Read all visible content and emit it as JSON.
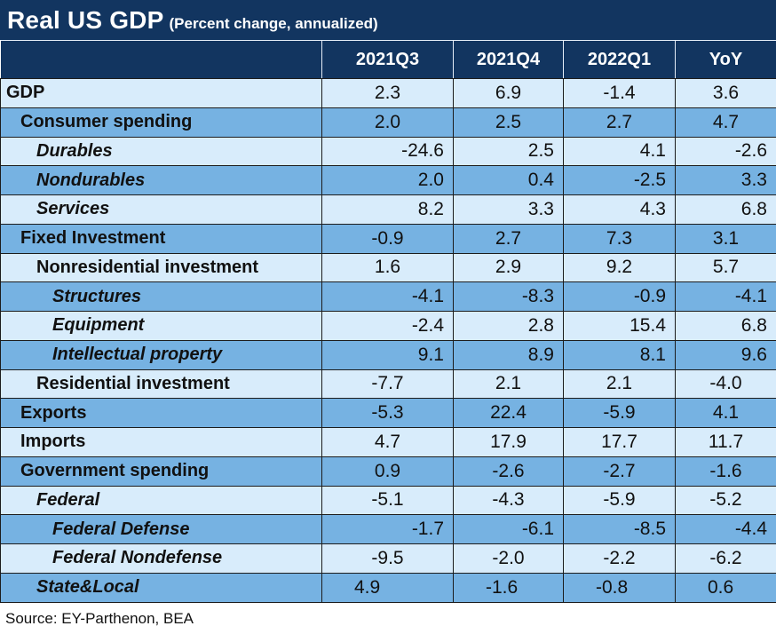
{
  "title": "Real US GDP",
  "subtitle": "(Percent change, annualized)",
  "source": "Source: EY-Parthenon, BEA",
  "colors": {
    "header_bg": "#123560",
    "row_light": "#d8ecfb",
    "row_dark": "#76b2e2",
    "header_text": "#ffffff"
  },
  "chart_data": {
    "type": "table",
    "title": "Real US GDP",
    "subtitle": "(Percent change, annualized)",
    "columns": [
      "2021Q3",
      "2021Q4",
      "2022Q1",
      "YoY"
    ],
    "rows": [
      {
        "label": "GDP",
        "level": 0,
        "italic": false,
        "shade": "light",
        "align": "center",
        "values": [
          "2.3",
          "6.9",
          "-1.4",
          "3.6"
        ]
      },
      {
        "label": "Consumer spending",
        "level": 1,
        "italic": false,
        "shade": "dark",
        "align": "center",
        "values": [
          "2.0",
          "2.5",
          "2.7",
          "4.7"
        ]
      },
      {
        "label": "Durables",
        "level": 2,
        "italic": true,
        "shade": "light",
        "align": "right",
        "values": [
          "-24.6",
          "2.5",
          "4.1",
          "-2.6"
        ]
      },
      {
        "label": "Nondurables",
        "level": 2,
        "italic": true,
        "shade": "dark",
        "align": "right",
        "values": [
          "2.0",
          "0.4",
          "-2.5",
          "3.3"
        ]
      },
      {
        "label": "Services",
        "level": 2,
        "italic": true,
        "shade": "light",
        "align": "right",
        "values": [
          "8.2",
          "3.3",
          "4.3",
          "6.8"
        ]
      },
      {
        "label": "Fixed Investment",
        "level": 1,
        "italic": false,
        "shade": "dark",
        "align": "center",
        "values": [
          "-0.9",
          "2.7",
          "7.3",
          "3.1"
        ]
      },
      {
        "label": "Nonresidential investment",
        "level": 2,
        "italic": false,
        "shade": "light",
        "align": "center",
        "values": [
          "1.6",
          "2.9",
          "9.2",
          "5.7"
        ]
      },
      {
        "label": "Structures",
        "level": 3,
        "italic": true,
        "shade": "dark",
        "align": "right",
        "values": [
          "-4.1",
          "-8.3",
          "-0.9",
          "-4.1"
        ]
      },
      {
        "label": "Equipment",
        "level": 3,
        "italic": true,
        "shade": "light",
        "align": "right",
        "values": [
          "-2.4",
          "2.8",
          "15.4",
          "6.8"
        ]
      },
      {
        "label": "Intellectual property",
        "level": 3,
        "italic": true,
        "shade": "dark",
        "align": "right",
        "values": [
          "9.1",
          "8.9",
          "8.1",
          "9.6"
        ]
      },
      {
        "label": "Residential investment",
        "level": 2,
        "italic": false,
        "shade": "light",
        "align": "center",
        "values": [
          "-7.7",
          "2.1",
          "2.1",
          "-4.0"
        ]
      },
      {
        "label": "Exports",
        "level": 1,
        "italic": false,
        "shade": "dark",
        "align": "center",
        "values": [
          "-5.3",
          "22.4",
          "-5.9",
          "4.1"
        ]
      },
      {
        "label": "Imports",
        "level": 1,
        "italic": false,
        "shade": "light",
        "align": "center",
        "values": [
          "4.7",
          "17.9",
          "17.7",
          "11.7"
        ]
      },
      {
        "label": "Government spending",
        "level": 1,
        "italic": false,
        "shade": "dark",
        "align": "center",
        "values": [
          "0.9",
          "-2.6",
          "-2.7",
          "-1.6"
        ]
      },
      {
        "label": "Federal",
        "level": 2,
        "italic": true,
        "shade": "light",
        "align": "center",
        "values": [
          "-5.1",
          "-4.3",
          "-5.9",
          "-5.2"
        ]
      },
      {
        "label": "Federal Defense",
        "level": 3,
        "italic": true,
        "shade": "dark",
        "align": "right",
        "values": [
          "-1.7",
          "-6.1",
          "-8.5",
          "-4.4"
        ]
      },
      {
        "label": "Federal Nondefense",
        "level": 3,
        "italic": true,
        "shade": "light",
        "align": "center",
        "values": [
          "-9.5",
          "-2.0",
          "-2.2",
          "-6.2"
        ]
      },
      {
        "label": "State&Local",
        "level": 2,
        "italic": true,
        "shade": "dark",
        "align": "left",
        "values": [
          "4.9",
          "-1.6",
          "-0.8",
          "0.6"
        ]
      }
    ]
  }
}
